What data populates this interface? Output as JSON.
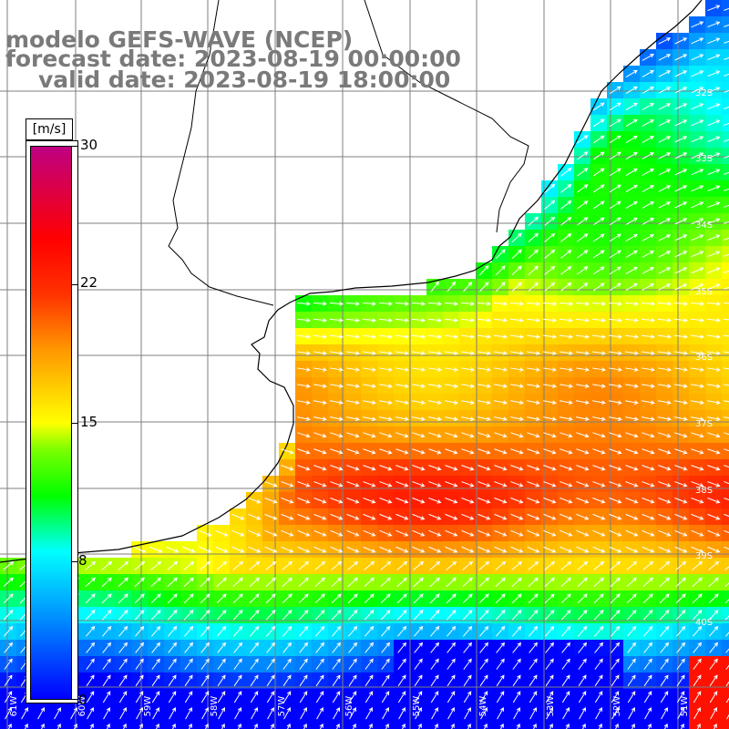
{
  "titles": {
    "line1": "modelo GEFS-WAVE (NCEP)",
    "line2": "forecast date: 2023-08-19 00:00:00",
    "line3": "valid date: 2023-08-19 18:00:00"
  },
  "colorbar": {
    "unit": "[m/s]",
    "ticks": [
      "30",
      "22",
      "15",
      "8",
      "0"
    ],
    "min": 0,
    "max": 30
  },
  "map": {
    "latitude_labels": [
      "32S",
      "33S",
      "34S",
      "35S",
      "36S",
      "37S",
      "38S",
      "39S",
      "40S"
    ],
    "longitude_labels": [
      "61W",
      "60W",
      "59W",
      "58W",
      "57W",
      "56W",
      "55W",
      "54W",
      "53W",
      "52W",
      "51W"
    ]
  },
  "colors": {
    "title": "#7a7a7a",
    "grid": "#7f7f7f",
    "coast": "#000000",
    "arrow": "#ffffff"
  }
}
